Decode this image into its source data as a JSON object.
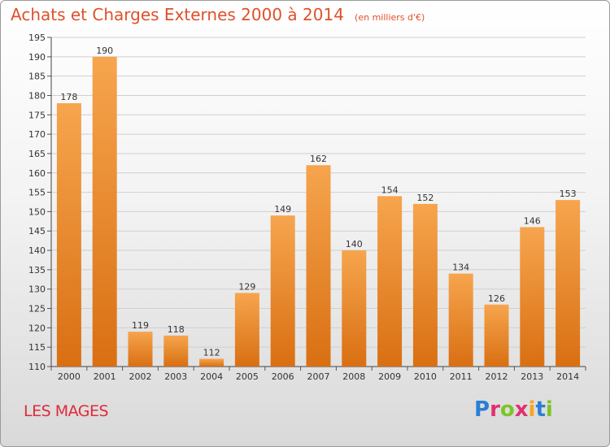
{
  "header": {
    "title": "Achats et Charges Externes 2000 à 2014",
    "subtitle": "(en milliers d'€)"
  },
  "footer": {
    "location": "LES MAGES",
    "brand": "Proxiti",
    "brand_colors": [
      "#2a7fd4",
      "#e2306f",
      "#7cc428",
      "#e2306f",
      "#f5a623",
      "#2a7fd4",
      "#7cc428"
    ]
  },
  "chart_data": {
    "type": "bar",
    "title": "Achats et Charges Externes 2000 à 2014",
    "subtitle": "(en milliers d'€)",
    "categories": [
      "2000",
      "2001",
      "2002",
      "2003",
      "2004",
      "2005",
      "2006",
      "2007",
      "2008",
      "2009",
      "2010",
      "2011",
      "2012",
      "2013",
      "2014"
    ],
    "values": [
      178,
      190,
      119,
      118,
      112,
      129,
      149,
      162,
      140,
      154,
      152,
      134,
      126,
      146,
      153
    ],
    "ylim": [
      110,
      195
    ],
    "yticks": [
      110,
      115,
      120,
      125,
      130,
      135,
      140,
      145,
      150,
      155,
      160,
      165,
      170,
      175,
      180,
      185,
      190,
      195
    ],
    "grid": true,
    "bar_color_top": "#f6a54e",
    "bar_color_bottom": "#d96f12",
    "grid_color": "#cfcfcf"
  }
}
